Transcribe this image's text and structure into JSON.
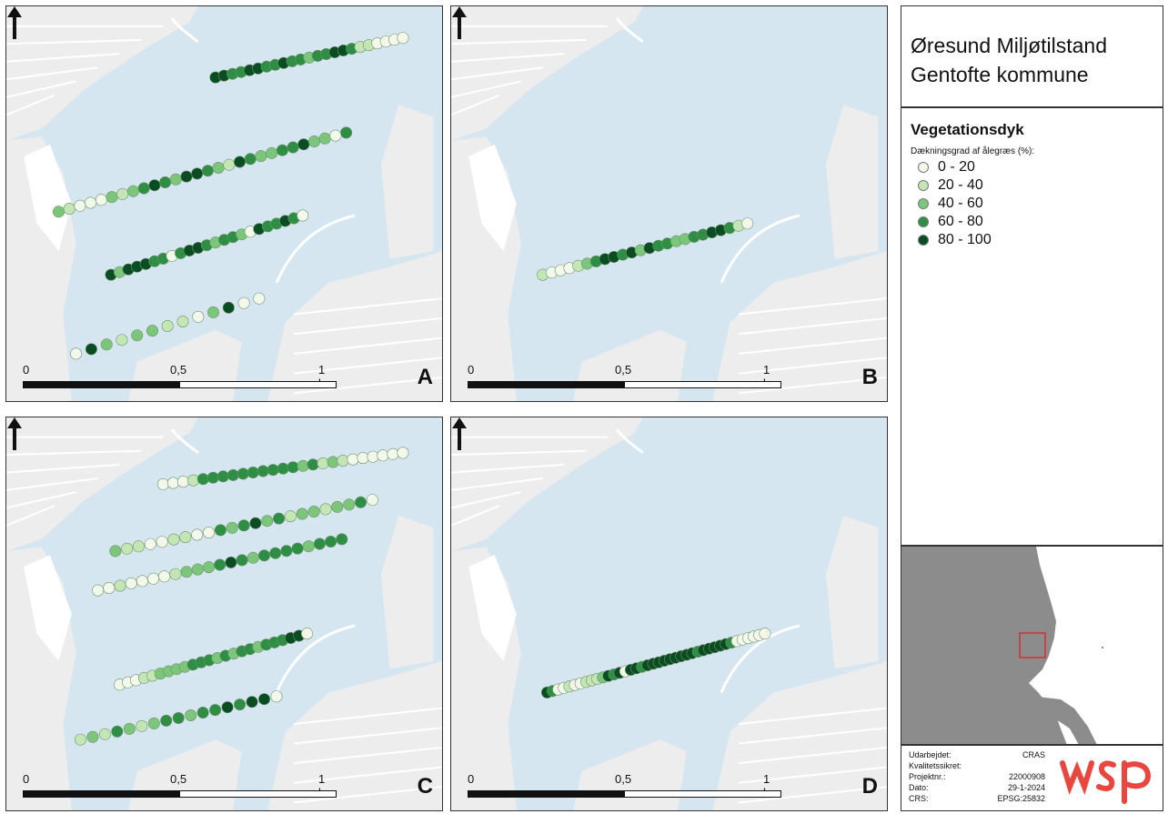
{
  "panels": [
    {
      "id": "A",
      "letter": "A"
    },
    {
      "id": "B",
      "letter": "B"
    },
    {
      "id": "C",
      "letter": "C"
    },
    {
      "id": "D",
      "letter": "D"
    }
  ],
  "scale": {
    "zero": "0",
    "mid": "0,5",
    "end": "1 km"
  },
  "title": {
    "line1": "Øresund Miljøtilstand",
    "line2": "Gentofte kommune"
  },
  "legend": {
    "title": "Vegetationsdyk",
    "subtitle": "Dækningsgrad af ålegræs (%):",
    "classes": [
      {
        "label": "0 - 20",
        "color": "#f2f8ea"
      },
      {
        "label": "20 - 40",
        "color": "#c4e6b4"
      },
      {
        "label": "40 - 60",
        "color": "#7bc67a"
      },
      {
        "label": "60 - 80",
        "color": "#2e8f44"
      },
      {
        "label": "80 - 100",
        "color": "#0b4d22"
      }
    ]
  },
  "info": {
    "rows": [
      {
        "key": "Udarbejdet:",
        "value": "CRAS"
      },
      {
        "key": "Kvalitetssikret:",
        "value": ""
      },
      {
        "key": "Projektnr.:",
        "value": "22000908"
      },
      {
        "key": "Dato:",
        "value": "29-1-2024"
      },
      {
        "key": "CRS:",
        "value": "EPSG:25832"
      }
    ],
    "logo": "wsp"
  },
  "map_data": {
    "A": [
      {
        "from": [
          0.48,
          0.18
        ],
        "to": [
          0.91,
          0.08
        ],
        "classes": [
          4,
          4,
          3,
          3,
          4,
          4,
          3,
          3,
          4,
          3,
          3,
          2,
          3,
          3,
          4,
          4,
          3,
          1,
          1,
          0,
          0,
          0,
          0
        ]
      },
      {
        "from": [
          0.12,
          0.52
        ],
        "to": [
          0.78,
          0.32
        ],
        "classes": [
          2,
          1,
          0,
          0,
          0,
          2,
          1,
          2,
          3,
          4,
          3,
          2,
          4,
          4,
          3,
          2,
          1,
          4,
          3,
          2,
          2,
          3,
          3,
          4,
          2,
          2,
          0,
          3
        ]
      },
      {
        "from": [
          0.24,
          0.68
        ],
        "to": [
          0.68,
          0.53
        ],
        "classes": [
          4,
          2,
          4,
          4,
          4,
          3,
          3,
          0,
          3,
          4,
          4,
          3,
          2,
          3,
          3,
          2,
          0,
          4,
          3,
          3,
          4,
          3,
          0
        ]
      },
      {
        "from": [
          0.16,
          0.88
        ],
        "to": [
          0.58,
          0.74
        ],
        "classes": [
          0,
          4,
          2,
          1,
          2,
          2,
          1,
          1,
          0,
          2,
          4,
          0,
          0
        ]
      }
    ],
    "B": [
      {
        "from": [
          0.21,
          0.68
        ],
        "to": [
          0.68,
          0.55
        ],
        "classes": [
          1,
          0,
          0,
          0,
          1,
          2,
          3,
          4,
          4,
          3,
          4,
          2,
          4,
          3,
          3,
          2,
          2,
          3,
          3,
          4,
          4,
          3,
          1,
          0
        ]
      }
    ],
    "C": [
      {
        "from": [
          0.36,
          0.17
        ],
        "to": [
          0.91,
          0.09
        ],
        "classes": [
          0,
          0,
          0,
          1,
          3,
          3,
          3,
          3,
          3,
          3,
          3,
          3,
          3,
          3,
          2,
          3,
          1,
          2,
          1,
          0,
          0,
          0,
          0,
          0,
          0
        ]
      },
      {
        "from": [
          0.25,
          0.34
        ],
        "to": [
          0.84,
          0.21
        ],
        "classes": [
          2,
          1,
          1,
          0,
          0,
          1,
          1,
          0,
          0,
          3,
          2,
          3,
          4,
          2,
          3,
          1,
          2,
          2,
          1,
          2,
          2,
          3,
          0
        ]
      },
      {
        "from": [
          0.21,
          0.44
        ],
        "to": [
          0.77,
          0.31
        ],
        "classes": [
          0,
          0,
          1,
          0,
          0,
          0,
          0,
          1,
          2,
          2,
          2,
          3,
          4,
          3,
          2,
          3,
          3,
          3,
          3,
          2,
          3,
          3,
          3
        ]
      },
      {
        "from": [
          0.26,
          0.68
        ],
        "to": [
          0.69,
          0.55
        ],
        "classes": [
          0,
          0,
          0,
          1,
          1,
          2,
          2,
          2,
          2,
          3,
          3,
          3,
          2,
          3,
          2,
          3,
          3,
          2,
          3,
          3,
          3,
          4,
          4,
          0
        ]
      },
      {
        "from": [
          0.17,
          0.82
        ],
        "to": [
          0.62,
          0.71
        ],
        "classes": [
          1,
          2,
          1,
          3,
          2,
          1,
          2,
          3,
          3,
          2,
          3,
          3,
          4,
          3,
          4,
          4,
          0
        ]
      }
    ],
    "D": [
      {
        "from": [
          0.22,
          0.7
        ],
        "to": [
          0.72,
          0.55
        ],
        "classes": [
          4,
          3,
          0,
          0,
          1,
          0,
          0,
          1,
          1,
          1,
          2,
          4,
          3,
          4,
          0,
          4,
          4,
          3,
          4,
          4,
          4,
          4,
          4,
          4,
          4,
          4,
          4,
          3,
          4,
          4,
          4,
          4,
          4,
          3,
          0,
          0,
          0,
          0,
          0,
          0
        ]
      }
    ]
  },
  "overview": {
    "frame": "study-area-frame"
  }
}
